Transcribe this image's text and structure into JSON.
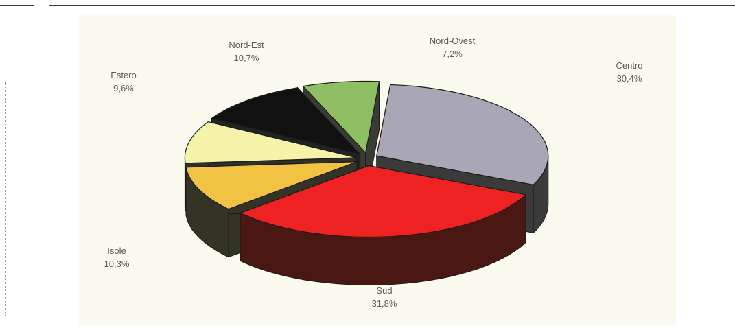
{
  "chart_data": {
    "type": "pie",
    "style": "3d-exploded",
    "categories": [
      "Centro",
      "Sud",
      "Isole",
      "Estero",
      "Nord-Est",
      "Nord-Ovest"
    ],
    "values": [
      30.4,
      31.8,
      10.3,
      9.6,
      10.7,
      7.2
    ],
    "value_labels": [
      "30,4%",
      "31,8%",
      "10,3%",
      "9,6%",
      "10,7%",
      "7,2%"
    ],
    "colors": [
      "#a9a6b6",
      "#ee2222",
      "#f2c343",
      "#f4f3a9",
      "#111111",
      "#8ec063"
    ],
    "side_colors": [
      "#3a3a3a",
      "#4a1712",
      "#333326",
      "#2f3027",
      "#222222",
      "#3a3b33"
    ],
    "background": "#fbfaef",
    "legend": "none",
    "grid": false
  },
  "labels": [
    {
      "name": "Centro",
      "value": "30,4%"
    },
    {
      "name": "Sud",
      "value": "31,8%"
    },
    {
      "name": "Isole",
      "value": "10,3%"
    },
    {
      "name": "Estero",
      "value": "9,6%"
    },
    {
      "name": "Nord-Est",
      "value": "10,7%"
    },
    {
      "name": "Nord-Ovest",
      "value": "7,2%"
    }
  ]
}
